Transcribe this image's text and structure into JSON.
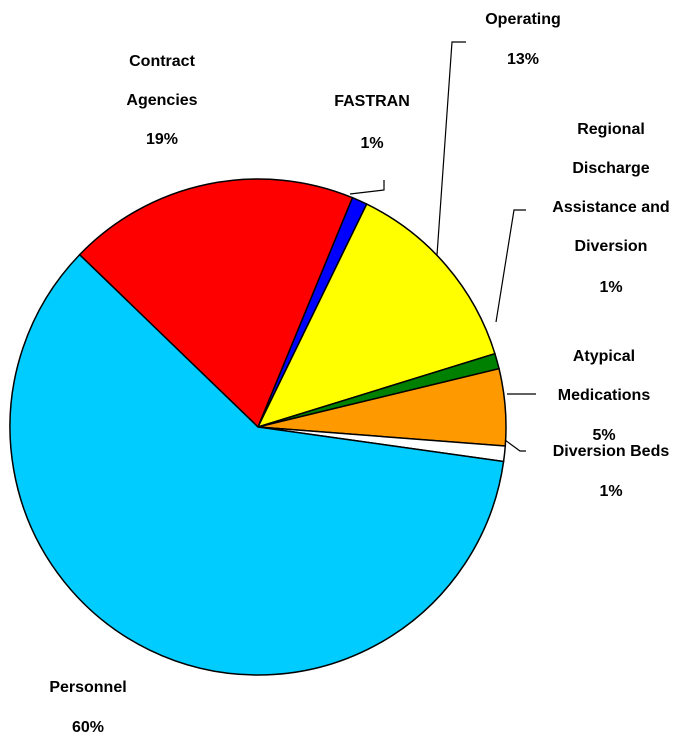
{
  "chart_data": {
    "type": "pie",
    "categories": [
      "Contract Agencies",
      "FASTRAN",
      "Operating",
      "Regional Discharge Assistance and Diversion",
      "Atypical Medications",
      "Diversion Beds",
      "Personnel"
    ],
    "values": [
      19,
      1,
      13,
      1,
      5,
      1,
      60
    ],
    "value_labels": [
      "19%",
      "1%",
      "13%",
      "1%",
      "5%",
      "1%",
      "60%"
    ],
    "colors": [
      "#ff0000",
      "#0000ff",
      "#ffff00",
      "#008000",
      "#ff9900",
      "#ffffff",
      "#00ccff"
    ]
  }
}
